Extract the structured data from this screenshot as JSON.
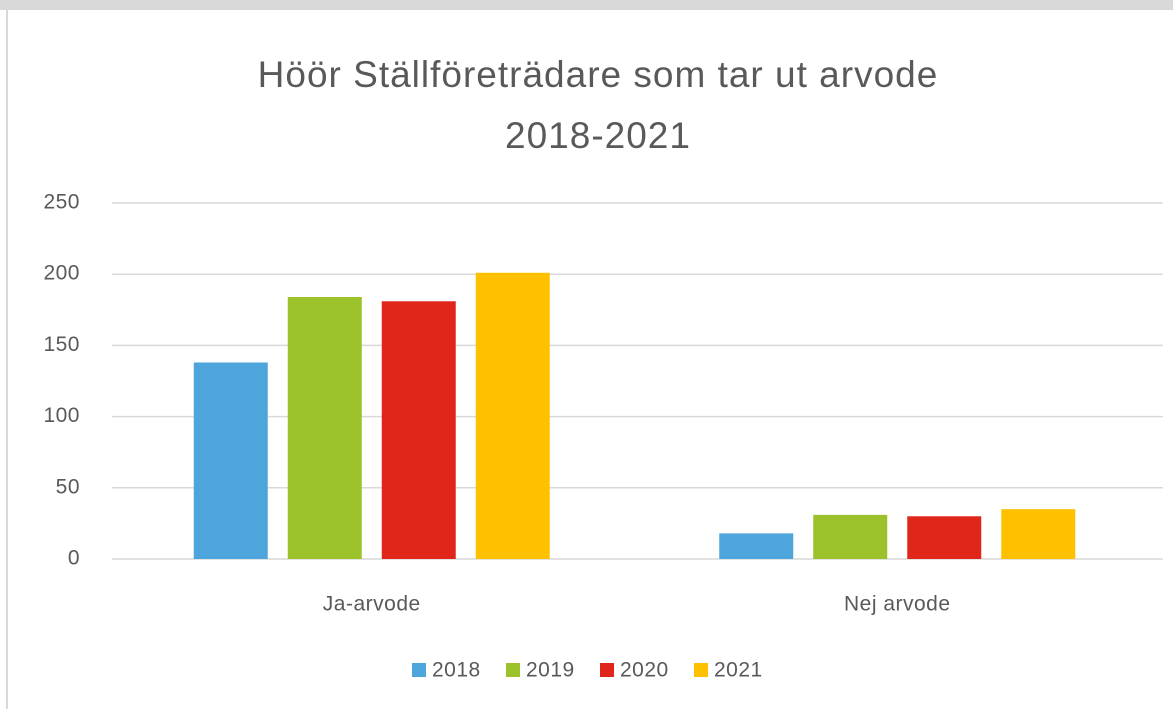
{
  "chart_data": {
    "type": "bar",
    "title": "Höör Ställföreträdare som tar ut arvode 2018-2021",
    "categories": [
      "Ja-arvode",
      "Nej arvode"
    ],
    "series": [
      {
        "name": "2018",
        "color": "#4ea5dc",
        "values": [
          138,
          18
        ]
      },
      {
        "name": "2019",
        "color": "#9bc22a",
        "values": [
          184,
          31
        ]
      },
      {
        "name": "2020",
        "color": "#e0261b",
        "values": [
          181,
          30
        ]
      },
      {
        "name": "2021",
        "color": "#ffc000",
        "values": [
          201,
          35
        ]
      }
    ],
    "ylim": [
      0,
      250
    ],
    "yticks": [
      0,
      50,
      100,
      150,
      200,
      250
    ],
    "grid": true,
    "legend": "bottom"
  }
}
